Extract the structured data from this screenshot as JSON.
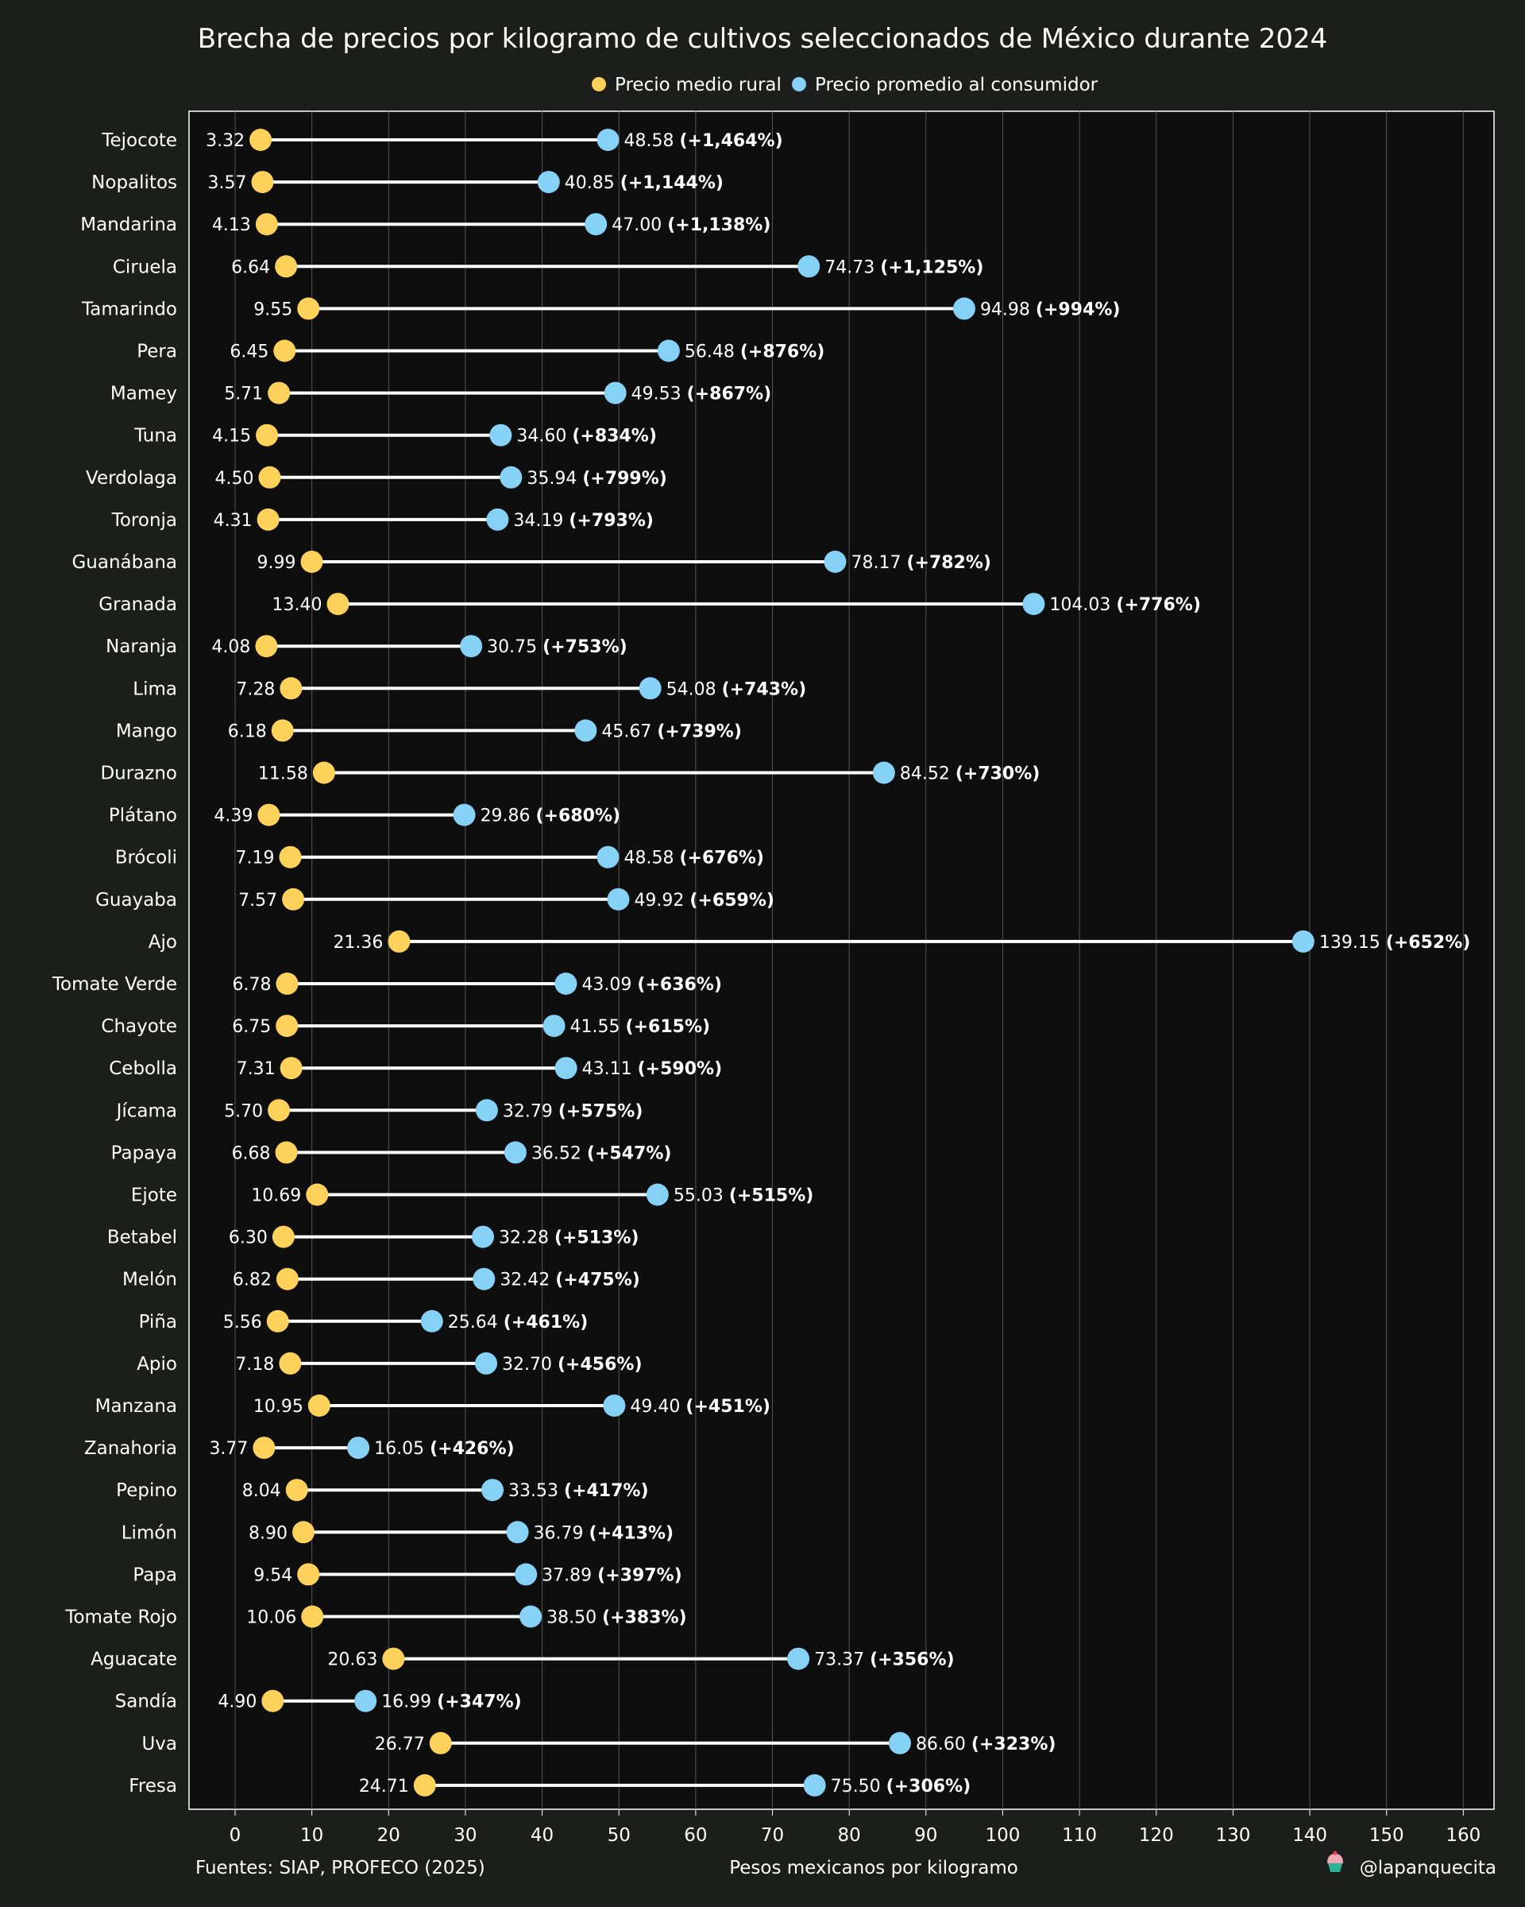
{
  "chart_data": {
    "type": "dumbbell",
    "title": "Brecha de precios por kilogramo de cultivos seleccionados de México durante 2024",
    "xlabel": "Pesos mexicanos por kilogramo",
    "xlim": [
      -6,
      164
    ],
    "xticks": [
      0,
      10,
      20,
      30,
      40,
      50,
      60,
      70,
      80,
      90,
      100,
      110,
      120,
      130,
      140,
      150,
      160
    ],
    "grid": "vertical",
    "legend_position": "top-center",
    "series": [
      {
        "name": "Precio medio rural",
        "color": "#fdd15a"
      },
      {
        "name": "Precio promedio al consumidor",
        "color": "#86d1f6"
      }
    ],
    "rows": [
      {
        "category": "Tejocote",
        "rural": 3.32,
        "consumer": 48.58,
        "rural_label": "3.32",
        "consumer_label": "48.58",
        "pct_label": "(+1,464%)"
      },
      {
        "category": "Nopalitos",
        "rural": 3.57,
        "consumer": 40.85,
        "rural_label": "3.57",
        "consumer_label": "40.85",
        "pct_label": "(+1,144%)"
      },
      {
        "category": "Mandarina",
        "rural": 4.13,
        "consumer": 47.0,
        "rural_label": "4.13",
        "consumer_label": "47.00",
        "pct_label": "(+1,138%)"
      },
      {
        "category": "Ciruela",
        "rural": 6.64,
        "consumer": 74.73,
        "rural_label": "6.64",
        "consumer_label": "74.73",
        "pct_label": "(+1,125%)"
      },
      {
        "category": "Tamarindo",
        "rural": 9.55,
        "consumer": 94.98,
        "rural_label": "9.55",
        "consumer_label": "94.98",
        "pct_label": "(+994%)"
      },
      {
        "category": "Pera",
        "rural": 6.45,
        "consumer": 56.48,
        "rural_label": "6.45",
        "consumer_label": "56.48",
        "pct_label": "(+876%)"
      },
      {
        "category": "Mamey",
        "rural": 5.71,
        "consumer": 49.53,
        "rural_label": "5.71",
        "consumer_label": "49.53",
        "pct_label": "(+867%)"
      },
      {
        "category": "Tuna",
        "rural": 4.15,
        "consumer": 34.6,
        "rural_label": "4.15",
        "consumer_label": "34.60",
        "pct_label": "(+834%)"
      },
      {
        "category": "Verdolaga",
        "rural": 4.5,
        "consumer": 35.94,
        "rural_label": "4.50",
        "consumer_label": "35.94",
        "pct_label": "(+799%)"
      },
      {
        "category": "Toronja",
        "rural": 4.31,
        "consumer": 34.19,
        "rural_label": "4.31",
        "consumer_label": "34.19",
        "pct_label": "(+793%)"
      },
      {
        "category": "Guanábana",
        "rural": 9.99,
        "consumer": 78.17,
        "rural_label": "9.99",
        "consumer_label": "78.17",
        "pct_label": "(+782%)"
      },
      {
        "category": "Granada",
        "rural": 13.4,
        "consumer": 104.03,
        "rural_label": "13.40",
        "consumer_label": "104.03",
        "pct_label": "(+776%)"
      },
      {
        "category": "Naranja",
        "rural": 4.08,
        "consumer": 30.75,
        "rural_label": "4.08",
        "consumer_label": "30.75",
        "pct_label": "(+753%)"
      },
      {
        "category": "Lima",
        "rural": 7.28,
        "consumer": 54.08,
        "rural_label": "7.28",
        "consumer_label": "54.08",
        "pct_label": "(+743%)"
      },
      {
        "category": "Mango",
        "rural": 6.18,
        "consumer": 45.67,
        "rural_label": "6.18",
        "consumer_label": "45.67",
        "pct_label": "(+739%)"
      },
      {
        "category": "Durazno",
        "rural": 11.58,
        "consumer": 84.52,
        "rural_label": "11.58",
        "consumer_label": "84.52",
        "pct_label": "(+730%)"
      },
      {
        "category": "Plátano",
        "rural": 4.39,
        "consumer": 29.86,
        "rural_label": "4.39",
        "consumer_label": "29.86",
        "pct_label": "(+680%)"
      },
      {
        "category": "Brócoli",
        "rural": 7.19,
        "consumer": 48.58,
        "rural_label": "7.19",
        "consumer_label": "48.58",
        "pct_label": "(+676%)"
      },
      {
        "category": "Guayaba",
        "rural": 7.57,
        "consumer": 49.92,
        "rural_label": "7.57",
        "consumer_label": "49.92",
        "pct_label": "(+659%)"
      },
      {
        "category": "Ajo",
        "rural": 21.36,
        "consumer": 139.15,
        "rural_label": "21.36",
        "consumer_label": "139.15",
        "pct_label": "(+652%)"
      },
      {
        "category": "Tomate Verde",
        "rural": 6.78,
        "consumer": 43.09,
        "rural_label": "6.78",
        "consumer_label": "43.09",
        "pct_label": "(+636%)"
      },
      {
        "category": "Chayote",
        "rural": 6.75,
        "consumer": 41.55,
        "rural_label": "6.75",
        "consumer_label": "41.55",
        "pct_label": "(+615%)"
      },
      {
        "category": "Cebolla",
        "rural": 7.31,
        "consumer": 43.11,
        "rural_label": "7.31",
        "consumer_label": "43.11",
        "pct_label": "(+590%)"
      },
      {
        "category": "Jícama",
        "rural": 5.7,
        "consumer": 32.79,
        "rural_label": "5.70",
        "consumer_label": "32.79",
        "pct_label": "(+575%)"
      },
      {
        "category": "Papaya",
        "rural": 6.68,
        "consumer": 36.52,
        "rural_label": "6.68",
        "consumer_label": "36.52",
        "pct_label": "(+547%)"
      },
      {
        "category": "Ejote",
        "rural": 10.69,
        "consumer": 55.03,
        "rural_label": "10.69",
        "consumer_label": "55.03",
        "pct_label": "(+515%)"
      },
      {
        "category": "Betabel",
        "rural": 6.3,
        "consumer": 32.28,
        "rural_label": "6.30",
        "consumer_label": "32.28",
        "pct_label": "(+513%)"
      },
      {
        "category": "Melón",
        "rural": 6.82,
        "consumer": 32.42,
        "rural_label": "6.82",
        "consumer_label": "32.42",
        "pct_label": "(+475%)"
      },
      {
        "category": "Piña",
        "rural": 5.56,
        "consumer": 25.64,
        "rural_label": "5.56",
        "consumer_label": "25.64",
        "pct_label": "(+461%)"
      },
      {
        "category": "Apio",
        "rural": 7.18,
        "consumer": 32.7,
        "rural_label": "7.18",
        "consumer_label": "32.70",
        "pct_label": "(+456%)"
      },
      {
        "category": "Manzana",
        "rural": 10.95,
        "consumer": 49.4,
        "rural_label": "10.95",
        "consumer_label": "49.40",
        "pct_label": "(+451%)"
      },
      {
        "category": "Zanahoria",
        "rural": 3.77,
        "consumer": 16.05,
        "rural_label": "3.77",
        "consumer_label": "16.05",
        "pct_label": "(+426%)"
      },
      {
        "category": "Pepino",
        "rural": 8.04,
        "consumer": 33.53,
        "rural_label": "8.04",
        "consumer_label": "33.53",
        "pct_label": "(+417%)"
      },
      {
        "category": "Limón",
        "rural": 8.9,
        "consumer": 36.79,
        "rural_label": "8.90",
        "consumer_label": "36.79",
        "pct_label": "(+413%)"
      },
      {
        "category": "Papa",
        "rural": 9.54,
        "consumer": 37.89,
        "rural_label": "9.54",
        "consumer_label": "37.89",
        "pct_label": "(+397%)"
      },
      {
        "category": "Tomate Rojo",
        "rural": 10.06,
        "consumer": 38.5,
        "rural_label": "10.06",
        "consumer_label": "38.50",
        "pct_label": "(+383%)"
      },
      {
        "category": "Aguacate",
        "rural": 20.63,
        "consumer": 73.37,
        "rural_label": "20.63",
        "consumer_label": "73.37",
        "pct_label": "(+356%)"
      },
      {
        "category": "Sandía",
        "rural": 4.9,
        "consumer": 16.99,
        "rural_label": "4.90",
        "consumer_label": "16.99",
        "pct_label": "(+347%)"
      },
      {
        "category": "Uva",
        "rural": 26.77,
        "consumer": 86.6,
        "rural_label": "26.77",
        "consumer_label": "86.60",
        "pct_label": "(+323%)"
      },
      {
        "category": "Fresa",
        "rural": 24.71,
        "consumer": 75.5,
        "rural_label": "24.71",
        "consumer_label": "75.50",
        "pct_label": "(+306%)"
      }
    ]
  },
  "colors": {
    "background": "#1b1e1a",
    "plot_background": "#0e0e0e",
    "grid": "#555555",
    "line": "#ffffff"
  },
  "footer": {
    "source": "Fuentes: SIAP, PROFECO (2025)",
    "credit": "@lapanquecita",
    "credit_icon": "cupcake-icon"
  }
}
